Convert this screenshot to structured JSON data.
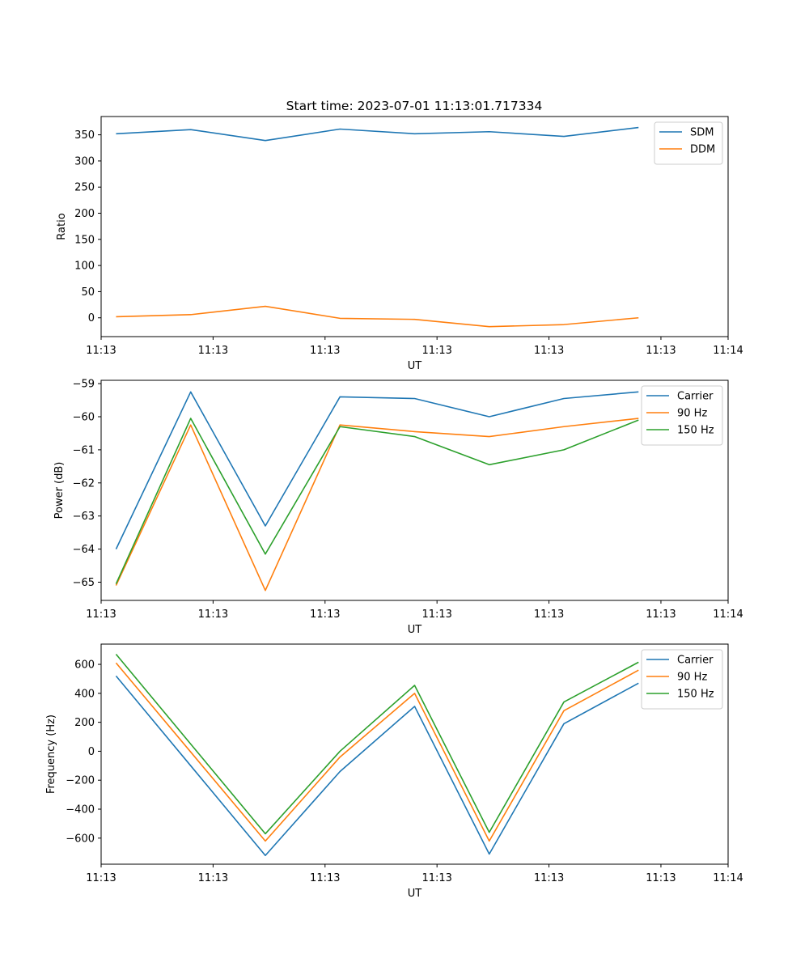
{
  "title": "Start time: 2023-07-01 11:13:01.717334",
  "colors": {
    "blue": "#1f77b4",
    "orange": "#ff7f0e",
    "green": "#2ca02c"
  },
  "chart_data": [
    {
      "type": "line",
      "title": "Start time: 2023-07-01 11:13:01.717334",
      "xlabel": "UT",
      "ylabel": "Ratio",
      "x": [
        1,
        2,
        3,
        4,
        5,
        6,
        7,
        8
      ],
      "xlim": [
        0.8,
        9.2
      ],
      "x_ticks": [
        0.8,
        2.3,
        3.8,
        5.3,
        6.8,
        8.3,
        9.2
      ],
      "x_tick_labels": [
        "11:13",
        "11:13",
        "11:13",
        "11:13",
        "11:13",
        "11:13",
        "11:14"
      ],
      "ylim": [
        -36,
        385
      ],
      "y_ticks": [
        0,
        50,
        100,
        150,
        200,
        250,
        300,
        350
      ],
      "y_tick_labels": [
        "0",
        "50",
        "100",
        "150",
        "200",
        "250",
        "300",
        "350"
      ],
      "legend": "top-right",
      "series": [
        {
          "name": "SDM",
          "color": "#1f77b4",
          "values": [
            352,
            360,
            339,
            361,
            352,
            356,
            347,
            364
          ]
        },
        {
          "name": "DDM",
          "color": "#ff7f0e",
          "values": [
            2,
            6,
            22,
            -1,
            -3,
            -17,
            -13,
            0
          ]
        }
      ]
    },
    {
      "type": "line",
      "title": "",
      "xlabel": "UT",
      "ylabel": "Power (dB)",
      "x": [
        1,
        2,
        3,
        4,
        5,
        6,
        7,
        8
      ],
      "xlim": [
        0.8,
        9.2
      ],
      "x_ticks": [
        0.8,
        2.3,
        3.8,
        5.3,
        6.8,
        8.3,
        9.2
      ],
      "x_tick_labels": [
        "11:13",
        "11:13",
        "11:13",
        "11:13",
        "11:13",
        "11:13",
        "11:14"
      ],
      "ylim": [
        -65.55,
        -58.9
      ],
      "y_ticks": [
        -65,
        -64,
        -63,
        -62,
        -61,
        -60,
        -59
      ],
      "y_tick_labels": [
        "−65",
        "−64",
        "−63",
        "−62",
        "−61",
        "−60",
        "−59"
      ],
      "legend": "top-right",
      "series": [
        {
          "name": "Carrier",
          "color": "#1f77b4",
          "values": [
            -64.0,
            -59.25,
            -63.3,
            -59.4,
            -59.45,
            -60.0,
            -59.45,
            -59.25
          ]
        },
        {
          "name": "90 Hz",
          "color": "#ff7f0e",
          "values": [
            -65.1,
            -60.25,
            -65.25,
            -60.25,
            -60.45,
            -60.6,
            -60.3,
            -60.05
          ]
        },
        {
          "name": "150 Hz",
          "color": "#2ca02c",
          "values": [
            -65.05,
            -60.05,
            -64.15,
            -60.3,
            -60.6,
            -61.45,
            -61.0,
            -60.1
          ]
        }
      ]
    },
    {
      "type": "line",
      "title": "",
      "xlabel": "UT",
      "ylabel": "Frequency (Hz)",
      "x": [
        1,
        2,
        3,
        4,
        5,
        6,
        7,
        8
      ],
      "xlim": [
        0.8,
        9.2
      ],
      "x_ticks": [
        0.8,
        2.3,
        3.8,
        5.3,
        6.8,
        8.3,
        9.2
      ],
      "x_tick_labels": [
        "11:13",
        "11:13",
        "11:13",
        "11:13",
        "11:13",
        "11:13",
        "11:14"
      ],
      "ylim": [
        -780,
        740
      ],
      "y_ticks": [
        -600,
        -400,
        -200,
        0,
        200,
        400,
        600
      ],
      "y_tick_labels": [
        "−600",
        "−400",
        "−200",
        "0",
        "200",
        "400",
        "600"
      ],
      "legend": "top-right",
      "series": [
        {
          "name": "Carrier",
          "color": "#1f77b4",
          "values": [
            520,
            -100,
            -720,
            -140,
            310,
            -710,
            190,
            470
          ]
        },
        {
          "name": "90 Hz",
          "color": "#ff7f0e",
          "values": [
            610,
            -5,
            -620,
            -40,
            400,
            -620,
            280,
            560
          ]
        },
        {
          "name": "150 Hz",
          "color": "#2ca02c",
          "values": [
            670,
            50,
            -570,
            0,
            455,
            -560,
            340,
            615
          ]
        }
      ]
    }
  ]
}
